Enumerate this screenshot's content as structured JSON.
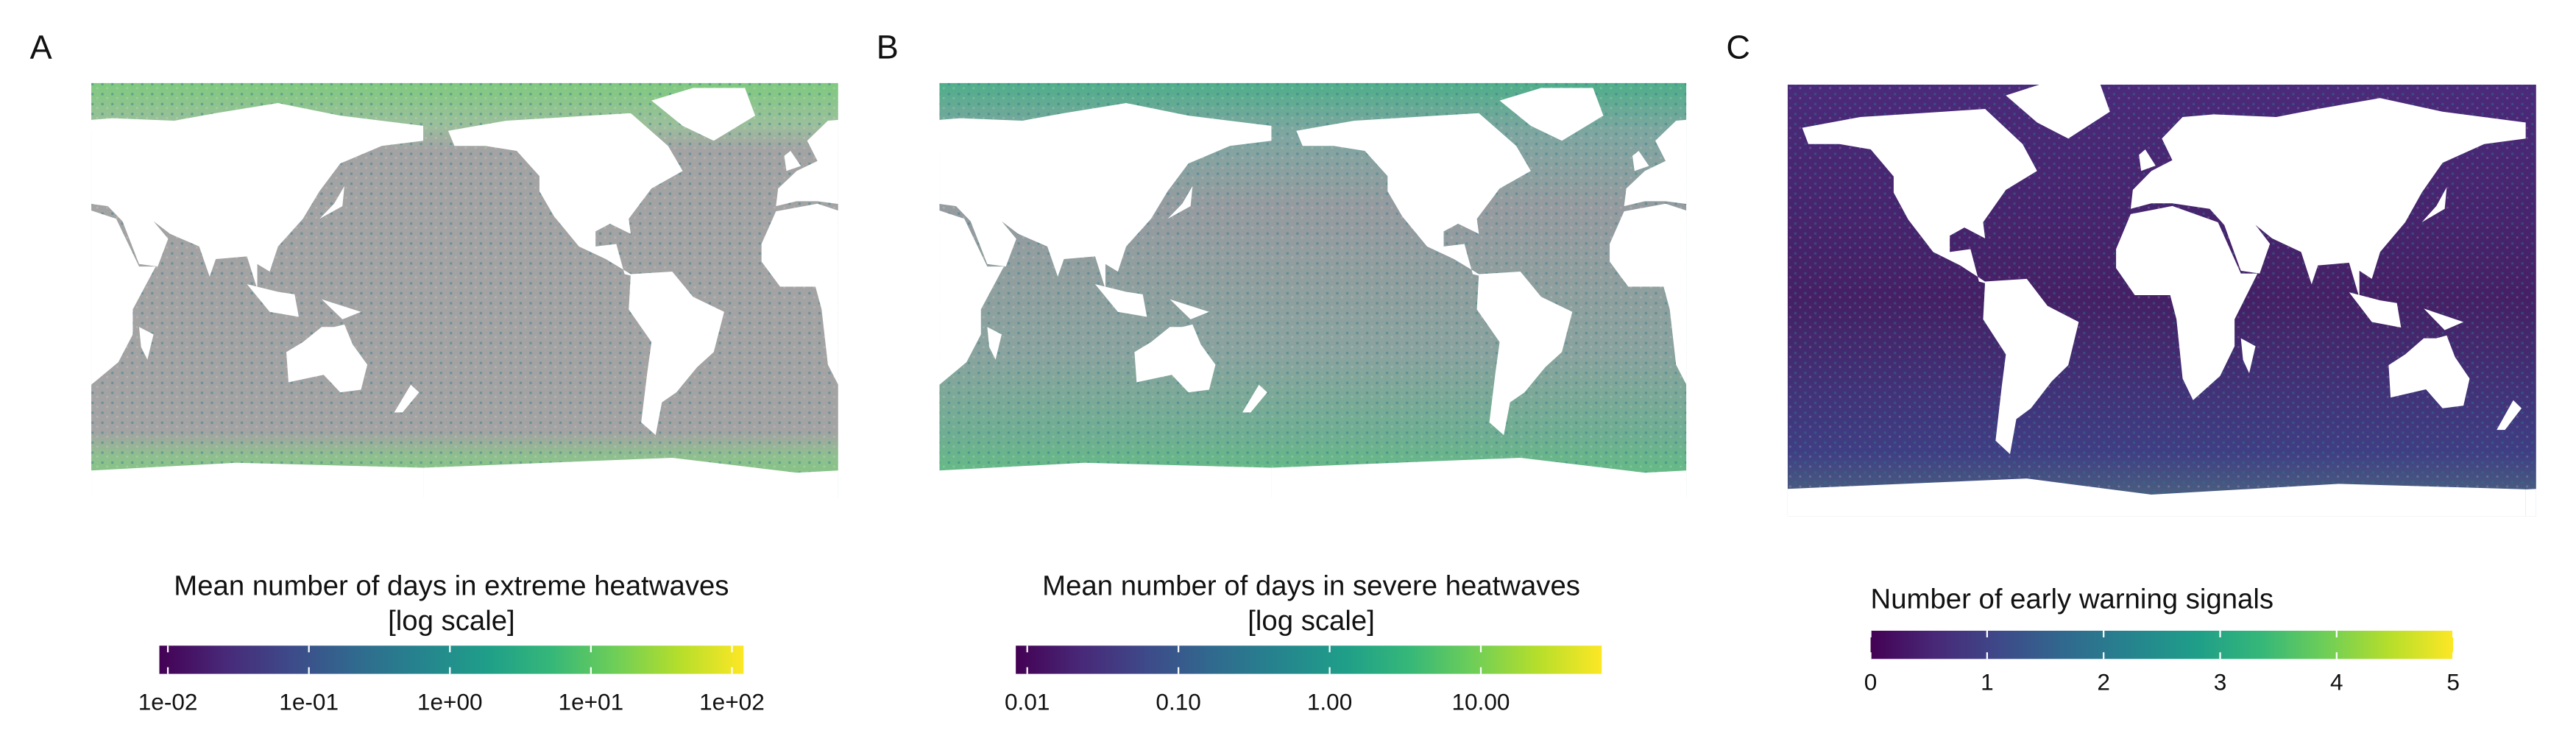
{
  "panels": [
    {
      "label": "A",
      "legend": {
        "title": [
          "Mean number of days in extreme heatwaves",
          "[log scale]"
        ],
        "scale": "log",
        "colormap": "viridis",
        "lim": [
          0.0087,
          121
        ],
        "ticks": [
          {
            "value": 0.01,
            "label": "1e-02"
          },
          {
            "value": 0.1,
            "label": "1e-01"
          },
          {
            "value": 1,
            "label": "1e+00"
          },
          {
            "value": 10,
            "label": "1e+01"
          },
          {
            "value": 100,
            "label": "1e+02"
          }
        ]
      }
    },
    {
      "label": "B",
      "legend": {
        "title": [
          "Mean number of days in severe heatwaves",
          "[log scale]"
        ],
        "scale": "log",
        "colormap": "viridis",
        "lim": [
          0.0084,
          63
        ],
        "ticks": [
          0.01,
          {
            "value": 0.1,
            "label": "0.10"
          },
          {
            "value": 1,
            "label": "1.00"
          },
          {
            "value": 10,
            "label": "10.00"
          }
        ]
      }
    },
    {
      "label": "C",
      "legend": {
        "title": [
          "Number of early warning signals"
        ],
        "scale": "linear",
        "colormap": "viridis",
        "lim": [
          0,
          5
        ],
        "ticks": [
          0,
          1,
          2,
          3,
          4,
          5
        ]
      }
    }
  ]
}
